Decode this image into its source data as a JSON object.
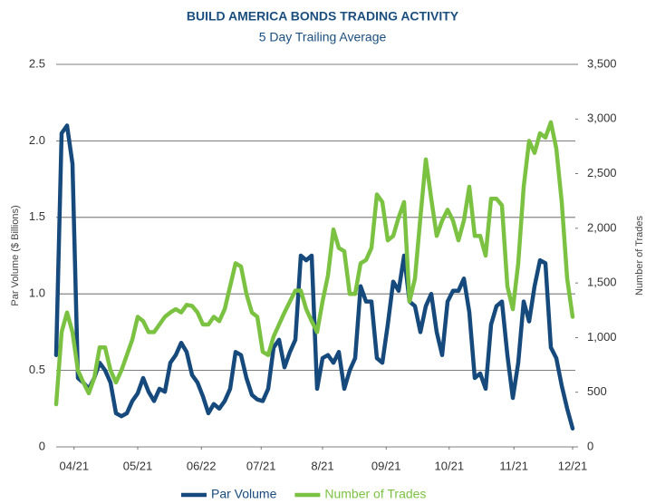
{
  "chart_data": {
    "type": "line",
    "title": "BUILD AMERICA BONDS TRADING ACTIVITY",
    "subtitle": "5 Day Trailing Average",
    "y_label": "Par Volume ($ Billions)",
    "y2_label": "Number of Trades",
    "x": [
      0,
      1,
      2,
      3,
      4,
      5,
      6,
      7,
      8,
      9,
      10,
      11,
      12,
      13,
      14,
      15,
      16,
      17,
      18,
      19,
      20,
      21,
      22,
      23,
      24,
      25,
      26,
      27,
      28,
      29,
      30,
      31,
      32,
      33,
      34,
      35,
      36,
      37,
      38,
      39,
      40,
      41,
      42,
      43,
      44,
      45,
      46,
      47,
      48,
      49,
      50,
      51,
      52,
      53,
      54,
      55,
      56,
      57,
      58,
      59,
      60,
      61,
      62,
      63,
      64,
      65,
      66,
      67,
      68,
      69,
      70,
      71,
      72,
      73,
      74,
      75,
      76,
      77,
      78,
      79,
      80,
      81,
      82,
      83,
      84,
      85,
      86,
      87,
      88,
      89,
      90,
      91,
      92,
      93,
      94,
      95
    ],
    "xlim": [
      0,
      95
    ],
    "xticks": [
      {
        "value": 3.3,
        "label": "04/21"
      },
      {
        "value": 15,
        "label": "05/21"
      },
      {
        "value": 26.7,
        "label": "06/22"
      },
      {
        "value": 37.7,
        "label": "07/21"
      },
      {
        "value": 49,
        "label": "8/21"
      },
      {
        "value": 60.7,
        "label": "09/21"
      },
      {
        "value": 72.3,
        "label": "10/21"
      },
      {
        "value": 84.2,
        "label": "11/21"
      },
      {
        "value": 95,
        "label": "12/21"
      }
    ],
    "ylim": [
      0,
      2.5
    ],
    "yticks": [
      0,
      0.5,
      {
        "value": 1,
        "label": "1.0"
      },
      1.5,
      {
        "value": 2,
        "label": "2.0"
      },
      2.5
    ],
    "y2lim": [
      0,
      3500
    ],
    "y2ticks": [
      0,
      500,
      {
        "value": 1000,
        "label": "1,000"
      },
      {
        "value": 1500,
        "label": "1,500"
      },
      {
        "value": 2000,
        "label": "2,000"
      },
      {
        "value": 2500,
        "label": "2,500"
      },
      {
        "value": 3000,
        "label": "3,000"
      },
      {
        "value": 3500,
        "label": "3,500"
      }
    ],
    "grid": true,
    "legend": "bottom",
    "series": [
      {
        "name": "Par Volume",
        "color": "#174a7c",
        "values": [
          0.6,
          2.05,
          2.1,
          1.85,
          0.45,
          0.42,
          0.38,
          0.45,
          0.55,
          0.5,
          0.42,
          0.22,
          0.2,
          0.22,
          0.3,
          0.35,
          0.45,
          0.36,
          0.3,
          0.38,
          0.36,
          0.55,
          0.6,
          0.68,
          0.62,
          0.47,
          0.42,
          0.33,
          0.22,
          0.28,
          0.25,
          0.3,
          0.38,
          0.62,
          0.6,
          0.45,
          0.34,
          0.31,
          0.3,
          0.38,
          0.65,
          0.7,
          0.52,
          0.62,
          0.7,
          1.25,
          1.22,
          1.25,
          0.38,
          0.58,
          0.6,
          0.55,
          0.62,
          0.38,
          0.5,
          0.58,
          1.05,
          0.95,
          0.95,
          0.58,
          0.55,
          0.8,
          1.08,
          1.02,
          1.25,
          0.95,
          0.92,
          0.75,
          0.92,
          1.0,
          0.75,
          0.6,
          0.95,
          1.02,
          1.02,
          1.1,
          0.88,
          0.45,
          0.48,
          0.38,
          0.8,
          0.92,
          0.95,
          0.6,
          0.32,
          0.55,
          0.95,
          0.82,
          1.05,
          1.22,
          1.2,
          0.65,
          0.58,
          0.4,
          0.25,
          0.12
        ]
      },
      {
        "name": "Number of Trades",
        "color": "#7cc242",
        "axis": "y2",
        "values": [
          390,
          1050,
          1230,
          1050,
          700,
          590,
          490,
          630,
          910,
          910,
          700,
          590,
          700,
          840,
          980,
          1190,
          1150,
          1050,
          1050,
          1120,
          1190,
          1230,
          1260,
          1230,
          1300,
          1290,
          1230,
          1120,
          1120,
          1190,
          1150,
          1260,
          1470,
          1680,
          1650,
          1400,
          1230,
          1190,
          870,
          840,
          1010,
          1120,
          1230,
          1330,
          1430,
          1430,
          1260,
          1150,
          1050,
          1330,
          1570,
          1990,
          1820,
          1790,
          1400,
          1400,
          1680,
          1710,
          1820,
          2310,
          2240,
          1890,
          1930,
          2100,
          2240,
          1330,
          1540,
          2100,
          2630,
          2270,
          1930,
          2070,
          2170,
          2070,
          1890,
          2070,
          2380,
          1930,
          1930,
          1750,
          2270,
          2270,
          2210,
          1470,
          1260,
          1680,
          2380,
          2800,
          2690,
          2870,
          2830,
          2970,
          2730,
          2240,
          1540,
          1190
        ]
      }
    ]
  }
}
